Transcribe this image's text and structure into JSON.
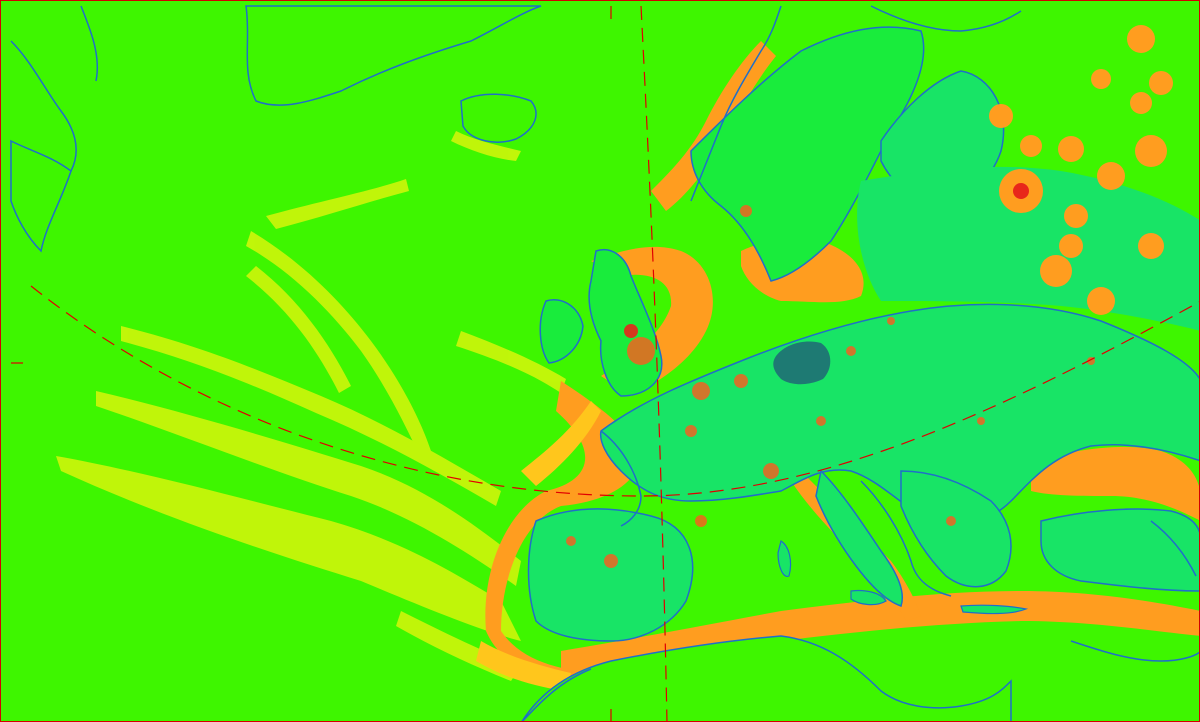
{
  "map": {
    "title": "",
    "colors": {
      "background": "#3ef600",
      "land_low": "#19ec3c",
      "land_mid": "#18e466",
      "shipping_light": "#c8f50a",
      "shipping_mid": "#ffc61c",
      "shipping_high": "#ff9d1f",
      "hotspot": "#ff5a1e",
      "hotspot_core": "#e8261a",
      "blob": "#1e7a73",
      "coastline": "#1f6fc9",
      "graticule": "#e00000",
      "frame": "#d40000"
    },
    "layers": [
      "background",
      "shipping-lanes",
      "land",
      "hotspots",
      "coastlines",
      "graticule"
    ]
  }
}
